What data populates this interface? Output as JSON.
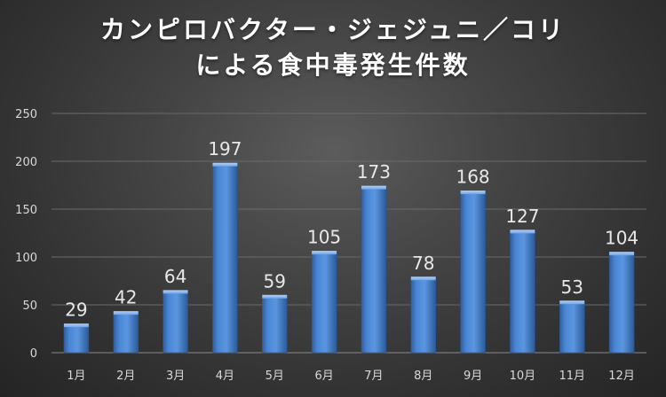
{
  "chart_data": {
    "type": "bar",
    "title_lines": [
      "カンピロバクター・ジェジュニ／コリ",
      "による食中毒発生件数"
    ],
    "categories": [
      "1月",
      "2月",
      "3月",
      "4月",
      "5月",
      "6月",
      "7月",
      "8月",
      "9月",
      "10月",
      "11月",
      "12月"
    ],
    "values": [
      29,
      42,
      64,
      197,
      59,
      105,
      173,
      78,
      168,
      127,
      53,
      104
    ],
    "xlabel": "",
    "ylabel": "",
    "ylim": [
      0,
      250
    ],
    "yticks": [
      0,
      50,
      100,
      150,
      200,
      250
    ],
    "grid": true,
    "legend": "none",
    "bar_color": "#4a86d4"
  }
}
